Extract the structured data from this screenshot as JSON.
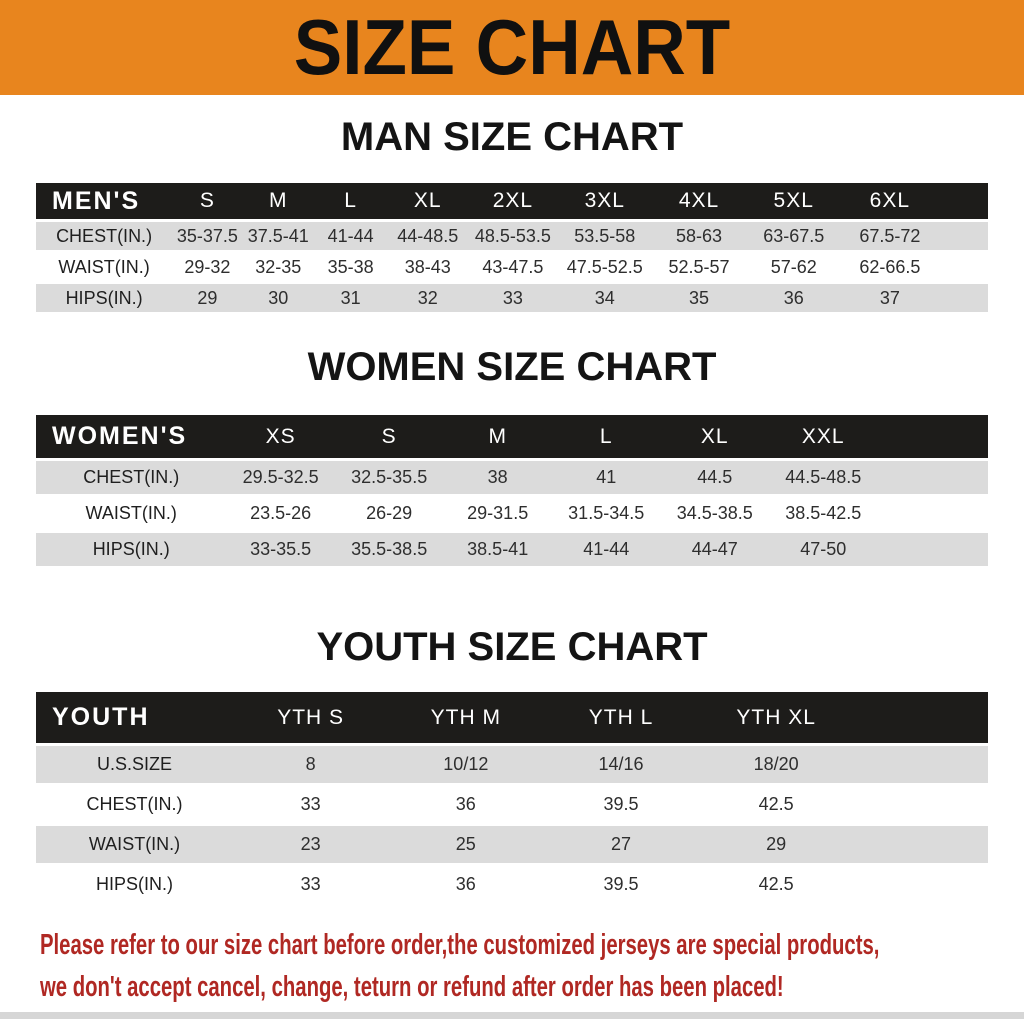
{
  "banner": {
    "title": "SIZE CHART"
  },
  "sections": [
    {
      "heading": "MAN SIZE CHART",
      "table": {
        "header": {
          "label": "MEN'S",
          "columns": [
            "S",
            "M",
            "L",
            "XL",
            "2XL",
            "3XL",
            "4XL",
            "5XL",
            "6XL"
          ]
        },
        "rows": [
          {
            "label": "CHEST(IN.)",
            "values": [
              "35-37.5",
              "37.5-41",
              "41-44",
              "44-48.5",
              "48.5-53.5",
              "53.5-58",
              "58-63",
              "63-67.5",
              "67.5-72"
            ]
          },
          {
            "label": "WAIST(IN.)",
            "values": [
              "29-32",
              "32-35",
              "35-38",
              "38-43",
              "43-47.5",
              "47.5-52.5",
              "52.5-57",
              "57-62",
              "62-66.5"
            ]
          },
          {
            "label": "HIPS(IN.)",
            "values": [
              "29",
              "30",
              "31",
              "32",
              "33",
              "34",
              "35",
              "36",
              "37"
            ]
          }
        ]
      }
    },
    {
      "heading": "WOMEN SIZE CHART",
      "table": {
        "header": {
          "label": "WOMEN'S",
          "columns": [
            "XS",
            "S",
            "M",
            "L",
            "XL",
            "XXL"
          ]
        },
        "rows": [
          {
            "label": "CHEST(IN.)",
            "values": [
              "29.5-32.5",
              "32.5-35.5",
              "38",
              "41",
              "44.5",
              "44.5-48.5"
            ]
          },
          {
            "label": "WAIST(IN.)",
            "values": [
              "23.5-26",
              "26-29",
              "29-31.5",
              "31.5-34.5",
              "34.5-38.5",
              "38.5-42.5"
            ]
          },
          {
            "label": "HIPS(IN.)",
            "values": [
              "33-35.5",
              "35.5-38.5",
              "38.5-41",
              "41-44",
              "44-47",
              "47-50"
            ]
          }
        ]
      }
    },
    {
      "heading": "YOUTH SIZE CHART",
      "table": {
        "header": {
          "label": "YOUTH",
          "columns": [
            "YTH S",
            "YTH M",
            "YTH L",
            "YTH XL"
          ]
        },
        "rows": [
          {
            "label": "U.S.SIZE",
            "values": [
              "8",
              "10/12",
              "14/16",
              "18/20"
            ]
          },
          {
            "label": "CHEST(IN.)",
            "values": [
              "33",
              "36",
              "39.5",
              "42.5"
            ]
          },
          {
            "label": "WAIST(IN.)",
            "values": [
              "23",
              "25",
              "27",
              "29"
            ]
          },
          {
            "label": "HIPS(IN.)",
            "values": [
              "33",
              "36",
              "39.5",
              "42.5"
            ]
          }
        ]
      }
    }
  ],
  "footer": {
    "line1": "Please refer to our size chart before order,the customized jerseys are special products,",
    "line2": "we don't accept cancel, change, teturn or refund after order has been placed!"
  },
  "colors": {
    "banner_orange": "#e8851e",
    "header_black": "#1d1c1a",
    "row_gray": "#dbdbdb",
    "warning_red": "#b02823"
  }
}
